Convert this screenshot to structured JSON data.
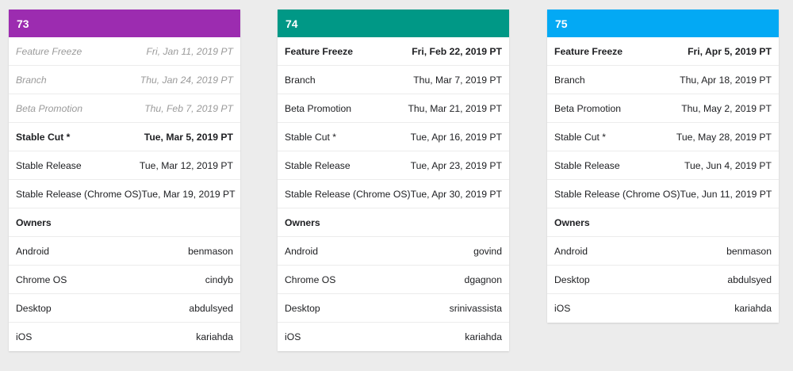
{
  "cards": [
    {
      "version": "73",
      "color": "#9c2cb0",
      "rows": [
        {
          "label": "Feature Freeze",
          "value": "Fri, Jan 11, 2019 PT"
        },
        {
          "label": "Branch",
          "value": "Thu, Jan 24, 2019 PT"
        },
        {
          "label": "Beta Promotion",
          "value": "Thu, Feb 7, 2019 PT"
        },
        {
          "label": "Stable Cut *",
          "value": "Tue, Mar 5, 2019 PT"
        },
        {
          "label": "Stable Release",
          "value": "Tue, Mar 12, 2019 PT"
        },
        {
          "label": "Stable Release (Chrome OS)",
          "value": "Tue, Mar 19, 2019 PT"
        },
        {
          "label": "Owners",
          "value": ""
        },
        {
          "label": "Android",
          "value": "benmason"
        },
        {
          "label": "Chrome OS",
          "value": "cindyb"
        },
        {
          "label": "Desktop",
          "value": "abdulsyed"
        },
        {
          "label": "iOS",
          "value": "kariahda"
        }
      ]
    },
    {
      "version": "74",
      "color": "#009886",
      "rows": [
        {
          "label": "Feature Freeze",
          "value": "Fri, Feb 22, 2019 PT"
        },
        {
          "label": "Branch",
          "value": "Thu, Mar 7, 2019 PT"
        },
        {
          "label": "Beta Promotion",
          "value": "Thu, Mar 21, 2019 PT"
        },
        {
          "label": "Stable Cut *",
          "value": "Tue, Apr 16, 2019 PT"
        },
        {
          "label": "Stable Release",
          "value": "Tue, Apr 23, 2019 PT"
        },
        {
          "label": "Stable Release (Chrome OS)",
          "value": "Tue, Apr 30, 2019 PT"
        },
        {
          "label": "Owners",
          "value": ""
        },
        {
          "label": "Android",
          "value": "govind"
        },
        {
          "label": "Chrome OS",
          "value": "dgagnon"
        },
        {
          "label": "Desktop",
          "value": "srinivassista"
        },
        {
          "label": "iOS",
          "value": "kariahda"
        }
      ]
    },
    {
      "version": "75",
      "color": "#03a9f4",
      "rows": [
        {
          "label": "Feature Freeze",
          "value": "Fri, Apr 5, 2019 PT"
        },
        {
          "label": "Branch",
          "value": "Thu, Apr 18, 2019 PT"
        },
        {
          "label": "Beta Promotion",
          "value": "Thu, May 2, 2019 PT"
        },
        {
          "label": "Stable Cut *",
          "value": "Tue, May 28, 2019 PT"
        },
        {
          "label": "Stable Release",
          "value": "Tue, Jun 4, 2019 PT"
        },
        {
          "label": "Stable Release (Chrome OS)",
          "value": "Tue, Jun 11, 2019 PT"
        },
        {
          "label": "Owners",
          "value": ""
        },
        {
          "label": "Android",
          "value": "benmason"
        },
        {
          "label": "Desktop",
          "value": "abdulsyed"
        },
        {
          "label": "iOS",
          "value": "kariahda"
        }
      ]
    }
  ]
}
